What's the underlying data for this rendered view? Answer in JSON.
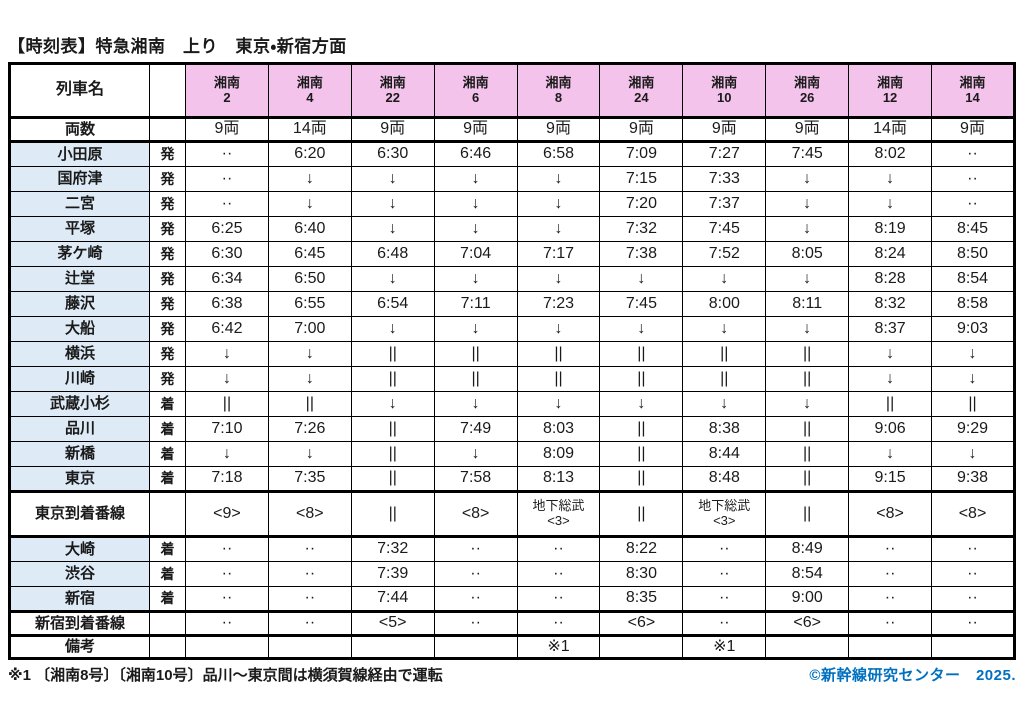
{
  "title": "【時刻表】特急湘南　上り　東京・新宿方面",
  "colors": {
    "train_header_pink": "#F4C3EC",
    "station_label_blue": "#DEEBF7",
    "copyright_blue": "#0070C0",
    "border_black": "#000000"
  },
  "table": {
    "corner_label": "列車名",
    "trains": [
      {
        "name": "湘南",
        "number": "2"
      },
      {
        "name": "湘南",
        "number": "4"
      },
      {
        "name": "湘南",
        "number": "22"
      },
      {
        "name": "湘南",
        "number": "6"
      },
      {
        "name": "湘南",
        "number": "8"
      },
      {
        "name": "湘南",
        "number": "24"
      },
      {
        "name": "湘南",
        "number": "10"
      },
      {
        "name": "湘南",
        "number": "26"
      },
      {
        "name": "湘南",
        "number": "12"
      },
      {
        "name": "湘南",
        "number": "14"
      }
    ],
    "rows": [
      {
        "type": "cars",
        "label": "両数",
        "mark": "",
        "section_end": true,
        "cells": [
          "9両",
          "14両",
          "9両",
          "9両",
          "9両",
          "9両",
          "9両",
          "9両",
          "14両",
          "9両"
        ]
      },
      {
        "type": "station",
        "label": "小田原",
        "mark": "発",
        "cells": [
          "··",
          "6:20",
          "6:30",
          "6:46",
          "6:58",
          "7:09",
          "7:27",
          "7:45",
          "8:02",
          "··"
        ]
      },
      {
        "type": "station",
        "label": "国府津",
        "mark": "発",
        "cells": [
          "··",
          "↓",
          "↓",
          "↓",
          "↓",
          "7:15",
          "7:33",
          "↓",
          "↓",
          "··"
        ]
      },
      {
        "type": "station",
        "label": "二宮",
        "mark": "発",
        "cells": [
          "··",
          "↓",
          "↓",
          "↓",
          "↓",
          "7:20",
          "7:37",
          "↓",
          "↓",
          "··"
        ]
      },
      {
        "type": "station",
        "label": "平塚",
        "mark": "発",
        "cells": [
          "6:25",
          "6:40",
          "↓",
          "↓",
          "↓",
          "7:32",
          "7:45",
          "↓",
          "8:19",
          "8:45"
        ]
      },
      {
        "type": "station",
        "label": "茅ケ崎",
        "mark": "発",
        "cells": [
          "6:30",
          "6:45",
          "6:48",
          "7:04",
          "7:17",
          "7:38",
          "7:52",
          "8:05",
          "8:24",
          "8:50"
        ]
      },
      {
        "type": "station",
        "label": "辻堂",
        "mark": "発",
        "cells": [
          "6:34",
          "6:50",
          "↓",
          "↓",
          "↓",
          "↓",
          "↓",
          "↓",
          "8:28",
          "8:54"
        ]
      },
      {
        "type": "station",
        "label": "藤沢",
        "mark": "発",
        "cells": [
          "6:38",
          "6:55",
          "6:54",
          "7:11",
          "7:23",
          "7:45",
          "8:00",
          "8:11",
          "8:32",
          "8:58"
        ]
      },
      {
        "type": "station",
        "label": "大船",
        "mark": "発",
        "cells": [
          "6:42",
          "7:00",
          "↓",
          "↓",
          "↓",
          "↓",
          "↓",
          "↓",
          "8:37",
          "9:03"
        ]
      },
      {
        "type": "station",
        "label": "横浜",
        "mark": "発",
        "cells": [
          "↓",
          "↓",
          "||",
          "||",
          "||",
          "||",
          "||",
          "||",
          "↓",
          "↓"
        ]
      },
      {
        "type": "station",
        "label": "川崎",
        "mark": "発",
        "cells": [
          "↓",
          "↓",
          "||",
          "||",
          "||",
          "||",
          "||",
          "||",
          "↓",
          "↓"
        ]
      },
      {
        "type": "station",
        "label": "武蔵小杉",
        "mark": "着",
        "cells": [
          "||",
          "||",
          "↓",
          "↓",
          "↓",
          "↓",
          "↓",
          "↓",
          "||",
          "||"
        ]
      },
      {
        "type": "station",
        "label": "品川",
        "mark": "着",
        "cells": [
          "7:10",
          "7:26",
          "||",
          "7:49",
          "8:03",
          "||",
          "8:38",
          "||",
          "9:06",
          "9:29"
        ]
      },
      {
        "type": "station",
        "label": "新橋",
        "mark": "着",
        "cells": [
          "↓",
          "↓",
          "||",
          "↓",
          "8:09",
          "||",
          "8:44",
          "||",
          "↓",
          "↓"
        ]
      },
      {
        "type": "station",
        "label": "東京",
        "mark": "着",
        "section_end": true,
        "cells": [
          "7:18",
          "7:35",
          "||",
          "7:58",
          "8:13",
          "||",
          "8:48",
          "||",
          "9:15",
          "9:38"
        ]
      },
      {
        "type": "track",
        "label": "東京到着番線",
        "mark": "",
        "section_end": true,
        "cells": [
          "<9>",
          "<8>",
          "||",
          "<8>",
          "地下総武\n<3>",
          "||",
          "地下総武\n<3>",
          "||",
          "<8>",
          "<8>"
        ]
      },
      {
        "type": "station",
        "label": "大崎",
        "mark": "着",
        "cells": [
          "··",
          "··",
          "7:32",
          "··",
          "··",
          "8:22",
          "··",
          "8:49",
          "··",
          "··"
        ]
      },
      {
        "type": "station",
        "label": "渋谷",
        "mark": "着",
        "cells": [
          "··",
          "··",
          "7:39",
          "··",
          "··",
          "8:30",
          "··",
          "8:54",
          "··",
          "··"
        ]
      },
      {
        "type": "station",
        "label": "新宿",
        "mark": "着",
        "section_end": true,
        "cells": [
          "··",
          "··",
          "7:44",
          "··",
          "··",
          "8:35",
          "··",
          "9:00",
          "··",
          "··"
        ]
      },
      {
        "type": "ban",
        "label": "新宿到着番線",
        "mark": "",
        "section_end": true,
        "cells": [
          "··",
          "··",
          "<5>",
          "··",
          "··",
          "<6>",
          "··",
          "<6>",
          "··",
          "··"
        ]
      },
      {
        "type": "note",
        "label": "備考",
        "mark": "",
        "cells": [
          "",
          "",
          "",
          "",
          "※1",
          "",
          "※1",
          "",
          "",
          ""
        ]
      }
    ]
  },
  "footnote": "※1 〔湘南8号〕〔湘南10号〕品川～東京間は横須賀線経由で運転",
  "copyright": "©新幹線研究センター　2025."
}
